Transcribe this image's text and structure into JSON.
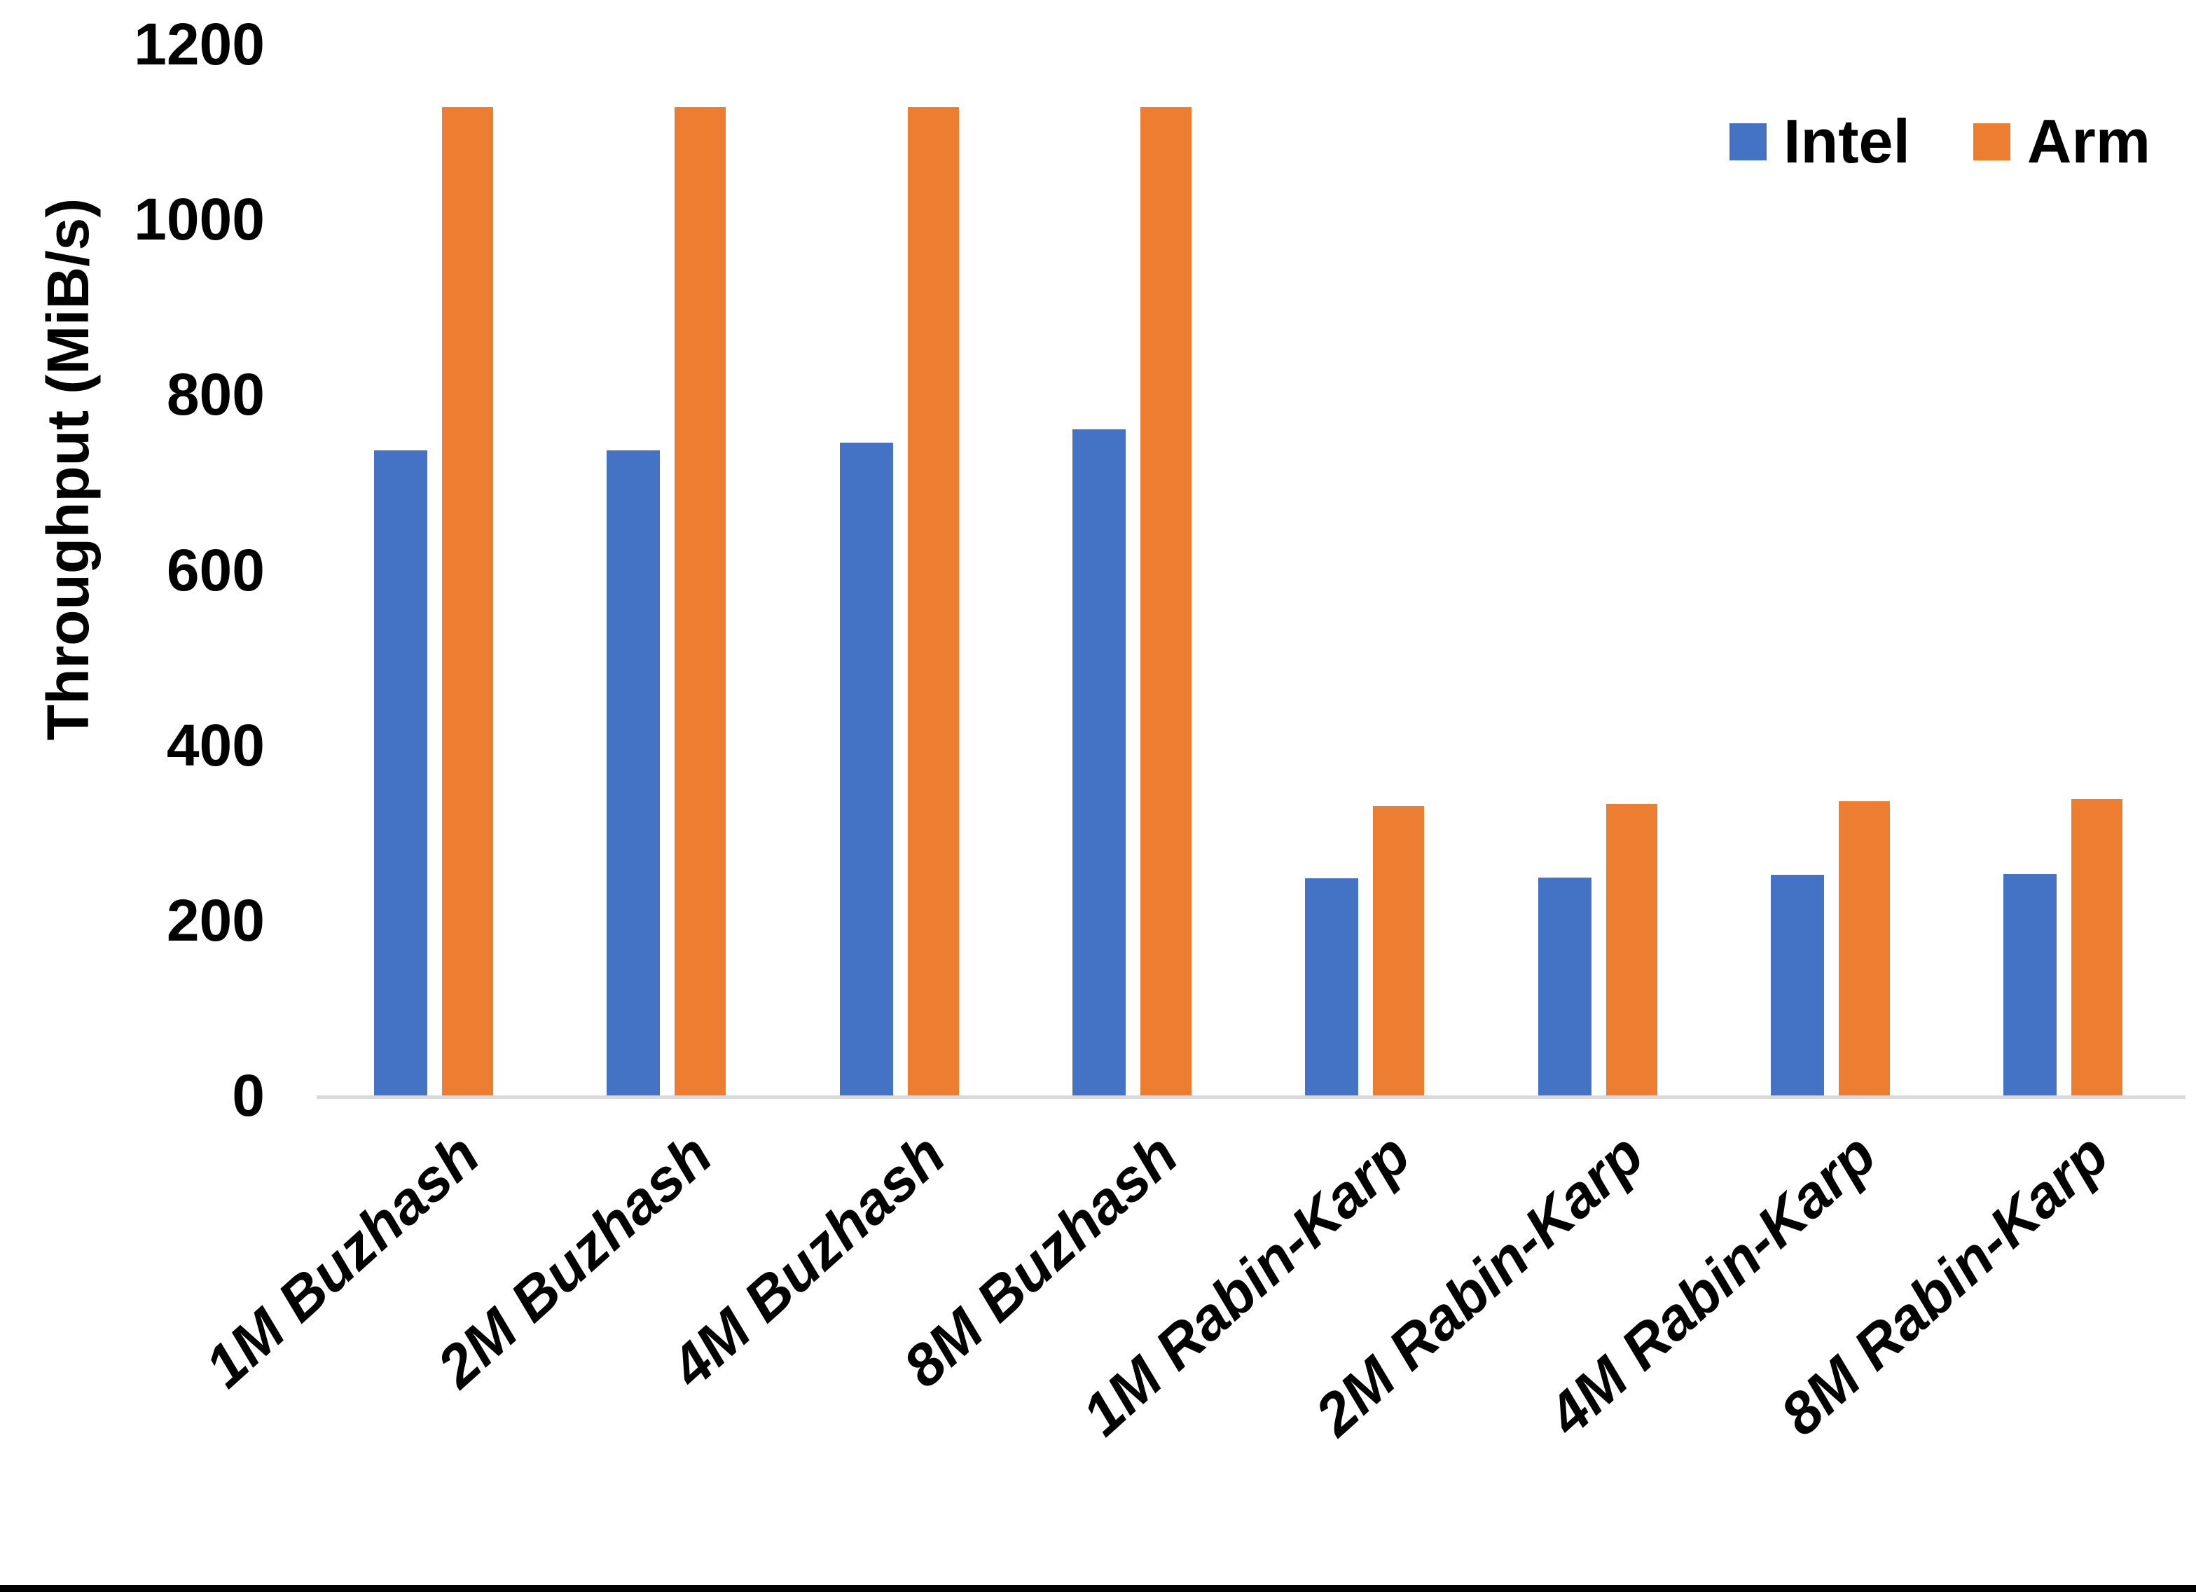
{
  "chart_data": {
    "type": "bar",
    "title": "",
    "categories": [
      "1M Buzhash",
      "2M Buzhash",
      "4M Buzhash",
      "8M Buzhash",
      "1M Rabin-Karp",
      "2M Rabin-Karp",
      "4M Rabin-Karp",
      "8M Rabin-Karp"
    ],
    "series": [
      {
        "name": "Intel",
        "color": "#4472C4",
        "values": [
          736,
          736,
          745,
          760,
          248,
          249,
          252,
          253
        ]
      },
      {
        "name": "Arm",
        "color": "#ED7D31",
        "values": [
          1128,
          1128,
          1128,
          1128,
          330,
          333,
          336,
          338
        ]
      }
    ],
    "xlabel": "",
    "ylabel": "Throughput (MiB/s)",
    "ylim": [
      0,
      1200
    ],
    "yticks": [
      0,
      200,
      400,
      600,
      800,
      1000,
      1200
    ],
    "ytick_labels": [
      "0",
      "200",
      "400",
      "600",
      "800",
      "1000",
      "1200"
    ],
    "grid": false,
    "legend_position": "top-right"
  },
  "colors": {
    "axis_line": "#D9D9D9",
    "text": "#000000",
    "background": "#FFFFFF",
    "bottom_border": "#000000"
  }
}
